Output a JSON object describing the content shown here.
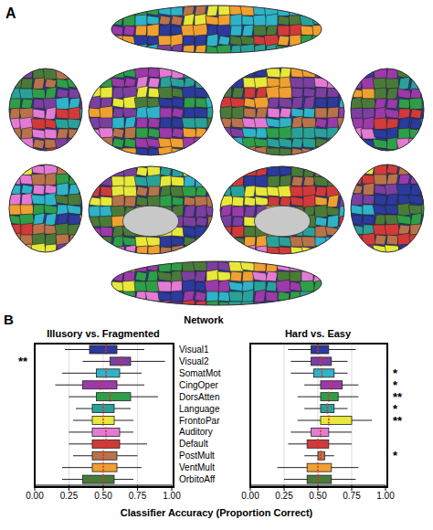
{
  "panel_labels": [
    "A",
    "B"
  ],
  "heading": "Network",
  "x_label": "Classifier Accuracy (Proportion Correct)",
  "chart_data": [
    {
      "type": "box",
      "title": "Illusory vs. Fragmented",
      "orientation": "horizontal",
      "grid": true,
      "categories": [
        "Visual1",
        "Visual2",
        "SomatMot",
        "CingOper",
        "DorsAtten",
        "Language",
        "FrontoPar",
        "Auditory",
        "Default",
        "PostMult",
        "VentMult",
        "OrbitoAff"
      ],
      "colors": [
        "#2b3a9c",
        "#7b3fa0",
        "#2fb3c8",
        "#9b3aa8",
        "#2e9e48",
        "#2aa198",
        "#e8e83a",
        "#e37bd4",
        "#d23a3a",
        "#b8734a",
        "#f0a030",
        "#4a7a3a"
      ],
      "xlim": [
        0,
        1
      ],
      "xticks": [
        {
          "value": 0,
          "label": "0.00"
        },
        {
          "value": 0.25,
          "label": "0.25"
        },
        {
          "value": 0.5,
          "label": "0.50"
        },
        {
          "value": 0.75,
          "label": "0.75"
        },
        {
          "value": 1,
          "label": "1.00"
        }
      ],
      "boxes": [
        {
          "min": 0.22,
          "q1": 0.4,
          "median": 0.52,
          "q3": 0.6,
          "max": 0.8
        },
        {
          "min": 0.35,
          "q1": 0.55,
          "median": 0.63,
          "q3": 0.7,
          "max": 0.95
        },
        {
          "min": 0.2,
          "q1": 0.45,
          "median": 0.52,
          "q3": 0.62,
          "max": 0.78
        },
        {
          "min": 0.15,
          "q1": 0.35,
          "median": 0.48,
          "q3": 0.6,
          "max": 0.8
        },
        {
          "min": 0.25,
          "q1": 0.45,
          "median": 0.55,
          "q3": 0.7,
          "max": 0.9
        },
        {
          "min": 0.3,
          "q1": 0.42,
          "median": 0.5,
          "q3": 0.58,
          "max": 0.7
        },
        {
          "min": 0.28,
          "q1": 0.42,
          "median": 0.5,
          "q3": 0.58,
          "max": 0.72
        },
        {
          "min": 0.25,
          "q1": 0.42,
          "median": 0.52,
          "q3": 0.62,
          "max": 0.72
        },
        {
          "min": 0.25,
          "q1": 0.42,
          "median": 0.52,
          "q3": 0.62,
          "max": 0.82
        },
        {
          "min": 0.28,
          "q1": 0.42,
          "median": 0.5,
          "q3": 0.6,
          "max": 0.75
        },
        {
          "min": 0.2,
          "q1": 0.42,
          "median": 0.5,
          "q3": 0.6,
          "max": 0.78
        },
        {
          "min": 0.2,
          "q1": 0.35,
          "median": 0.5,
          "q3": 0.58,
          "max": 0.72
        }
      ],
      "significance": [
        null,
        "**",
        null,
        null,
        null,
        null,
        null,
        null,
        null,
        null,
        null,
        null
      ]
    },
    {
      "type": "box",
      "title": "Hard vs. Easy",
      "orientation": "horizontal",
      "grid": true,
      "categories": [
        "Visual1",
        "Visual2",
        "SomatMot",
        "CingOper",
        "DorsAtten",
        "Language",
        "FrontoPar",
        "Auditory",
        "Default",
        "PostMult",
        "VentMult",
        "OrbitoAff"
      ],
      "colors": [
        "#2b3a9c",
        "#7b3fa0",
        "#2fb3c8",
        "#9b3aa8",
        "#2e9e48",
        "#2aa198",
        "#e8e83a",
        "#e37bd4",
        "#d23a3a",
        "#b8734a",
        "#f0a030",
        "#4a7a3a"
      ],
      "xlim": [
        0,
        1
      ],
      "xticks": [
        {
          "value": 0,
          "label": "0.00"
        },
        {
          "value": 0.25,
          "label": "0.25"
        },
        {
          "value": 0.5,
          "label": "0.50"
        },
        {
          "value": 0.75,
          "label": "0.75"
        },
        {
          "value": 1,
          "label": "1.00"
        }
      ],
      "boxes": [
        {
          "min": 0.28,
          "q1": 0.45,
          "median": 0.5,
          "q3": 0.58,
          "max": 0.78
        },
        {
          "min": 0.3,
          "q1": 0.45,
          "median": 0.52,
          "q3": 0.6,
          "max": 0.72
        },
        {
          "min": 0.3,
          "q1": 0.47,
          "median": 0.53,
          "q3": 0.62,
          "max": 0.72
        },
        {
          "min": 0.4,
          "q1": 0.52,
          "median": 0.6,
          "q3": 0.68,
          "max": 0.8
        },
        {
          "min": 0.35,
          "q1": 0.52,
          "median": 0.58,
          "q3": 0.65,
          "max": 0.8
        },
        {
          "min": 0.4,
          "q1": 0.52,
          "median": 0.57,
          "q3": 0.62,
          "max": 0.72
        },
        {
          "min": 0.35,
          "q1": 0.52,
          "median": 0.58,
          "q3": 0.75,
          "max": 0.9
        },
        {
          "min": 0.3,
          "q1": 0.45,
          "median": 0.52,
          "q3": 0.58,
          "max": 0.75
        },
        {
          "min": 0.28,
          "q1": 0.42,
          "median": 0.5,
          "q3": 0.58,
          "max": 0.75
        },
        {
          "min": 0.4,
          "q1": 0.5,
          "median": 0.52,
          "q3": 0.55,
          "max": 0.62
        },
        {
          "min": 0.2,
          "q1": 0.42,
          "median": 0.5,
          "q3": 0.6,
          "max": 0.8
        },
        {
          "min": 0.25,
          "q1": 0.42,
          "median": 0.5,
          "q3": 0.6,
          "max": 0.78
        }
      ],
      "significance": [
        null,
        null,
        "*",
        "*",
        "**",
        "*",
        "**",
        null,
        null,
        "*",
        null,
        null
      ]
    }
  ]
}
